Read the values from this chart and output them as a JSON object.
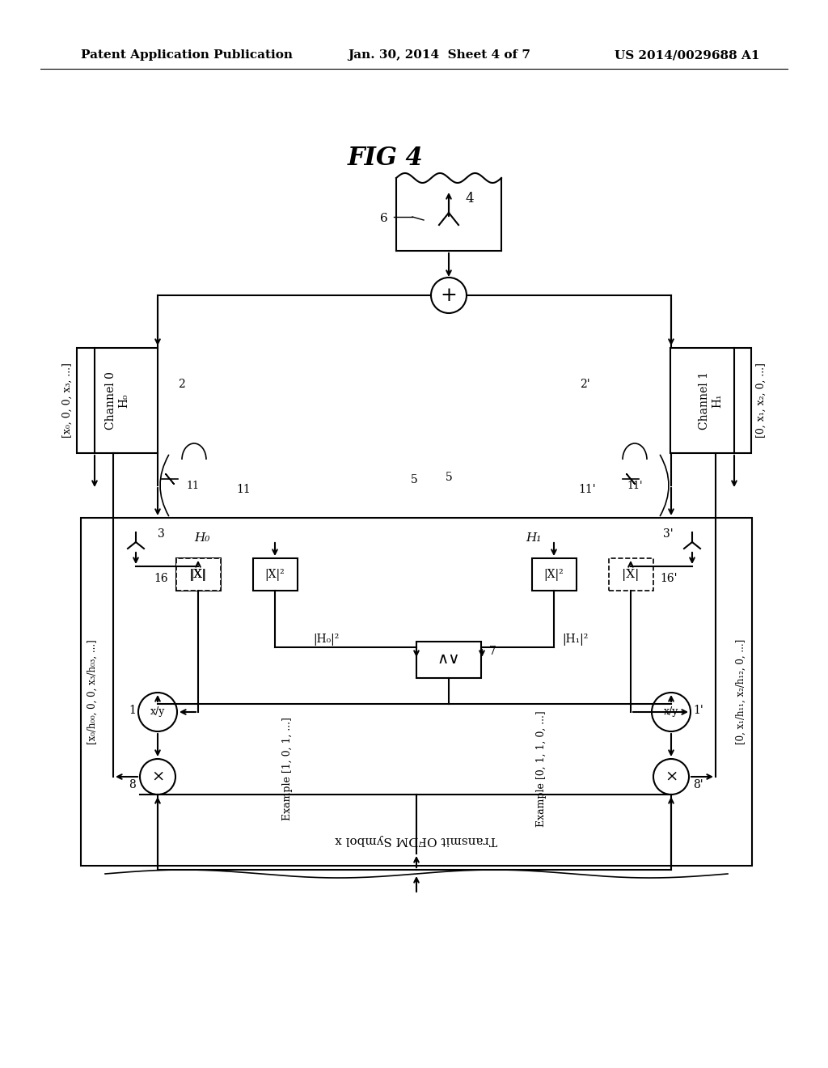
{
  "header_left": "Patent Application Publication",
  "header_mid": "Jan. 30, 2014  Sheet 4 of 7",
  "header_right": "US 2014/0029688 A1",
  "fig_label": "FIG 4",
  "bg_color": "#ffffff",
  "line_color": "#000000"
}
